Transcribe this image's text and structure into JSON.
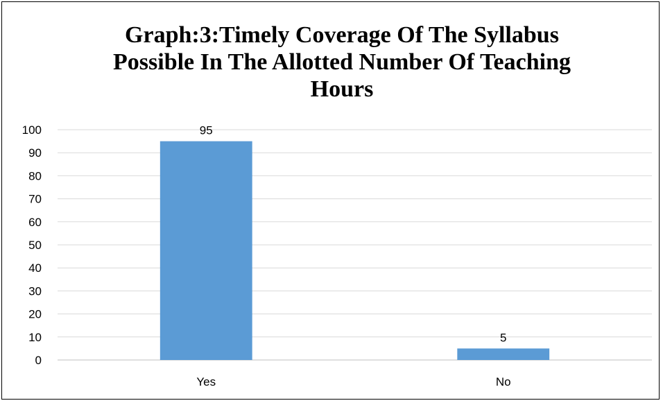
{
  "chart_data": {
    "type": "bar",
    "title_lines": [
      "Graph:3:Timely Coverage Of The Syllabus",
      "Possible In The Allotted Number Of Teaching",
      "Hours"
    ],
    "categories": [
      "Yes",
      "No"
    ],
    "values": [
      95,
      5
    ],
    "data_labels": [
      "95",
      "5"
    ],
    "ylim": [
      0,
      100
    ],
    "yticks": [
      0,
      10,
      20,
      30,
      40,
      50,
      60,
      70,
      80,
      90,
      100
    ],
    "ytick_labels": [
      "0",
      "10",
      "20",
      "30",
      "40",
      "50",
      "60",
      "70",
      "80",
      "90",
      "100"
    ],
    "grid": true,
    "legend": "none",
    "bar_color": "#5b9bd5",
    "grid_color": "#d9d9d9",
    "axis_color": "#bfbfbf"
  }
}
